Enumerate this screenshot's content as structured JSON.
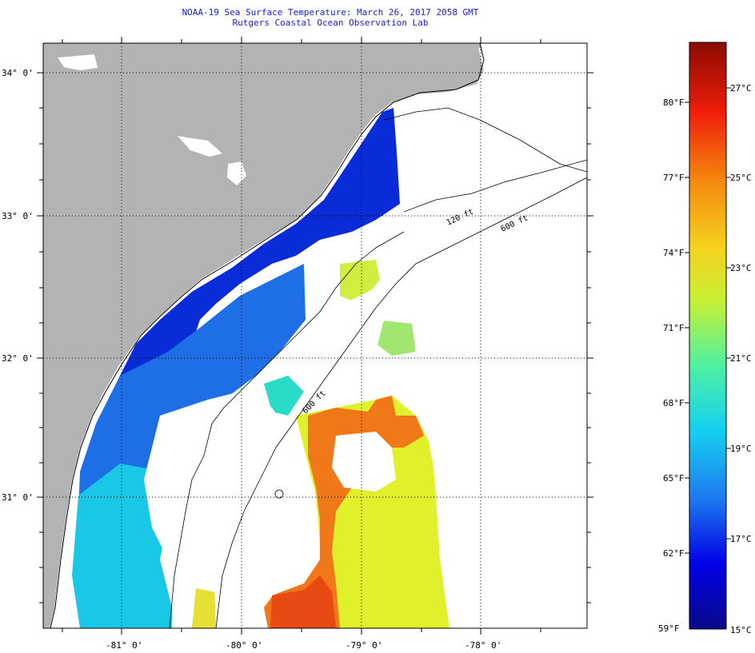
{
  "header": {
    "title": "NOAA-19 Sea Surface Temperature:  March 26, 2017 2058 GMT",
    "subtitle": "Rutgers Coastal Ocean Observation Lab"
  },
  "map": {
    "lat_labels": [
      "34° 0'",
      "33° 0'",
      "32° 0'",
      "31° 0'"
    ],
    "lon_labels": [
      "-81° 0'",
      "-80° 0'",
      "-79° 0'",
      "-78° 0'"
    ],
    "isobaths": [
      "120 ft",
      "600 ft",
      "600 ft"
    ],
    "colors": {
      "land": "#b3b3b3",
      "cold": "#0010c8",
      "cool": "#1e6ee6",
      "mid": "#19c8e6",
      "warm_yellow": "#e0f02a",
      "warm_orange": "#f07818",
      "hot": "#e84a14"
    }
  },
  "colorbar": {
    "f_labels": [
      "80°F",
      "77°F",
      "74°F",
      "71°F",
      "68°F",
      "65°F",
      "62°F",
      "59°F"
    ],
    "c_labels": [
      "27°C",
      "25°C",
      "23°C",
      "21°C",
      "19°C",
      "17°C",
      "15°C"
    ],
    "stops": [
      "#0a0a8a",
      "#0000e6",
      "#1e78f0",
      "#14d2f0",
      "#50f0a0",
      "#c8f032",
      "#f5d21e",
      "#f58c0f",
      "#f01e0a",
      "#8a0a00"
    ]
  }
}
